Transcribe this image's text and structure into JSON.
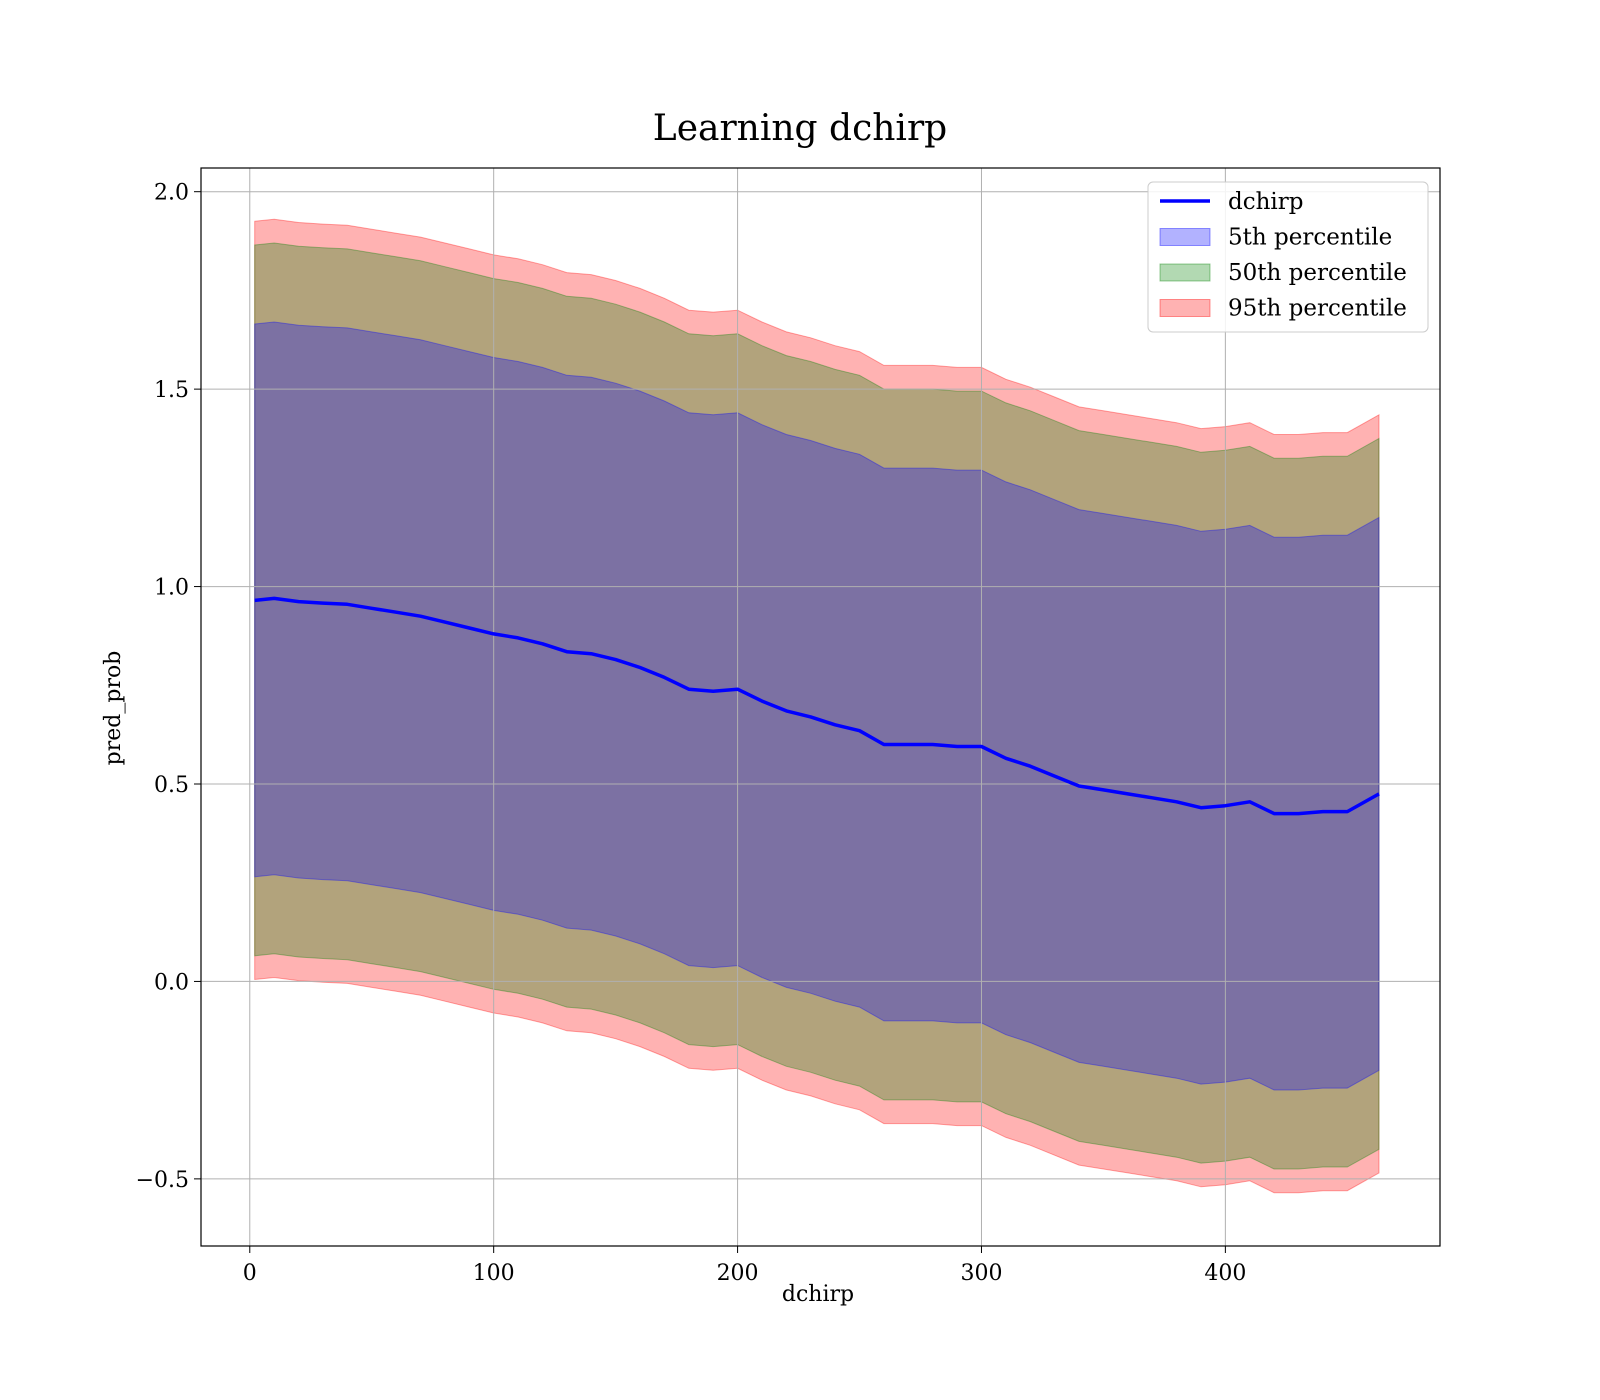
{
  "chart_data": {
    "type": "area",
    "title": "Learning dchirp",
    "xlabel": "dchirp",
    "ylabel": "pred_prob",
    "xlim": [
      -20,
      488
    ],
    "ylim": [
      -0.67,
      2.06
    ],
    "xticks": [
      0,
      100,
      200,
      300,
      400
    ],
    "yticks": [
      -0.5,
      0.0,
      0.5,
      1.0,
      1.5,
      2.0
    ],
    "xtick_labels": [
      "0",
      "100",
      "200",
      "300",
      "400"
    ],
    "ytick_labels": [
      "−0.5",
      "0.0",
      "0.5",
      "1.0",
      "1.5",
      "2.0"
    ],
    "grid": true,
    "legend_position": "top-right",
    "x": [
      2,
      10,
      20,
      30,
      40,
      50,
      60,
      70,
      80,
      90,
      100,
      110,
      120,
      130,
      140,
      150,
      160,
      170,
      180,
      190,
      200,
      210,
      220,
      230,
      240,
      250,
      260,
      270,
      280,
      290,
      300,
      310,
      320,
      330,
      340,
      350,
      360,
      370,
      380,
      390,
      400,
      410,
      420,
      430,
      440,
      450,
      463
    ],
    "series": [
      {
        "name": "dchirp",
        "kind": "line",
        "color": "#0000ff",
        "values": [
          0.965,
          0.97,
          0.962,
          0.958,
          0.955,
          0.945,
          0.935,
          0.925,
          0.91,
          0.895,
          0.88,
          0.87,
          0.855,
          0.835,
          0.83,
          0.815,
          0.795,
          0.77,
          0.74,
          0.735,
          0.74,
          0.71,
          0.685,
          0.67,
          0.65,
          0.635,
          0.6,
          0.6,
          0.6,
          0.595,
          0.595,
          0.565,
          0.545,
          0.52,
          0.495,
          0.485,
          0.475,
          0.465,
          0.455,
          0.44,
          0.445,
          0.455,
          0.425,
          0.425,
          0.43,
          0.43,
          0.475
        ]
      },
      {
        "name": "5th percentile",
        "kind": "band",
        "color": "#0000ff",
        "opacity": 0.3,
        "lower_offset": -0.7,
        "upper_offset": 0.7
      },
      {
        "name": "50th percentile",
        "kind": "band",
        "color": "#008000",
        "opacity": 0.3,
        "lower_offset": -0.9,
        "upper_offset": 0.9
      },
      {
        "name": "95th percentile",
        "kind": "band",
        "color": "#ff0000",
        "opacity": 0.3,
        "lower_offset": -0.96,
        "upper_offset": 0.96
      }
    ]
  }
}
